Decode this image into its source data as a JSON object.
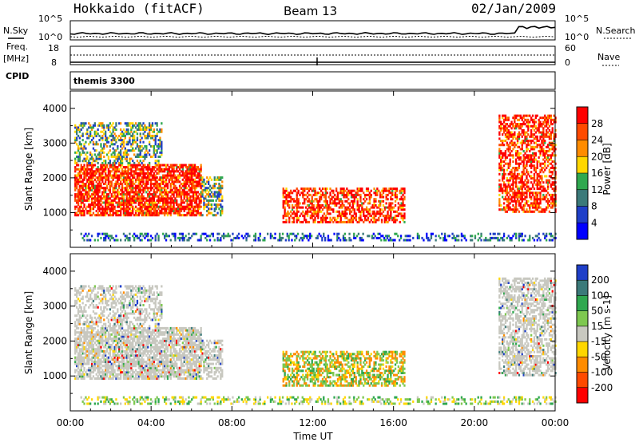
{
  "header": {
    "site": "Hokkaido (fitACF)",
    "beam": "Beam 13",
    "date": "02/Jan/2009"
  },
  "noise_panel": {
    "left_label": "N.Sky",
    "right_label": "N.Search",
    "left_ticks": [
      "10^5",
      "10^0"
    ],
    "right_ticks": [
      "10^5",
      "10^0"
    ]
  },
  "freq_panel": {
    "left_label_1": "Freq.",
    "left_label_2": "[MHz]",
    "left_ticks": [
      "18",
      "8"
    ],
    "right_label": "Nave",
    "right_ticks": [
      "60",
      "0"
    ]
  },
  "cpid_panel": {
    "label": "CPID",
    "program": "themis 3300"
  },
  "x_axis": {
    "label": "Time UT",
    "ticks": [
      "00:00",
      "04:00",
      "08:00",
      "12:00",
      "16:00",
      "20:00",
      "00:00"
    ]
  },
  "chart_data": [
    {
      "type": "heatmap",
      "name": "power",
      "ylabel": "Slant Range [km]",
      "yticks": [
        "1000",
        "2000",
        "3000",
        "4000"
      ],
      "colorbar_label": "Power [dB]",
      "colorbar_ticks": [
        "28",
        "24",
        "20",
        "16",
        "12",
        "8",
        "4"
      ],
      "colorbar_colors": [
        "#ff0000",
        "#ff4a00",
        "#ff8c00",
        "#ffd700",
        "#2fa84f",
        "#3b7a7a",
        "#1f3fc8",
        "#0000ff"
      ]
    },
    {
      "type": "heatmap",
      "name": "velocity",
      "ylabel": "Slant Range [km]",
      "yticks": [
        "1000",
        "2000",
        "3000",
        "4000"
      ],
      "colorbar_label": "Velocity [m s-1]",
      "colorbar_ticks": [
        "200",
        "100",
        "50",
        "15",
        "-15",
        "-50",
        "-100",
        "-200"
      ],
      "colorbar_colors": [
        "#1f3fc8",
        "#3b7a7a",
        "#2fa84f",
        "#7ec850",
        "#c8c8c0",
        "#ffd700",
        "#ff8c00",
        "#ff4a00",
        "#ff0000"
      ]
    }
  ]
}
